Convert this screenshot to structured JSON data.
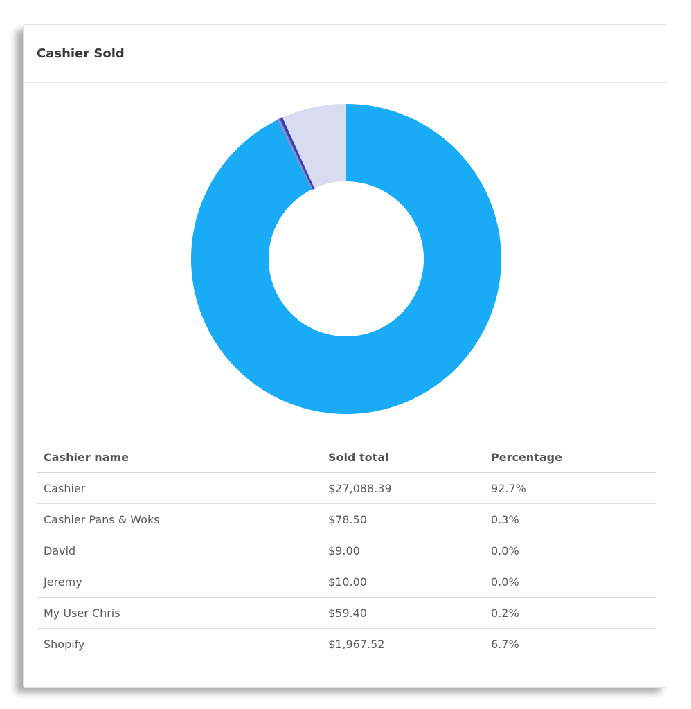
{
  "card": {
    "title": "Cashier Sold"
  },
  "colors": {
    "accent": "#1aabf6",
    "lavender": "#d9dbf0",
    "indigo": "#4448b8",
    "slate": "#8790c8"
  },
  "chart_data": {
    "type": "pie",
    "donut": true,
    "legend": "none",
    "categories": [
      "Cashier",
      "Cashier Pans & Woks",
      "David",
      "Jeremy",
      "My User Chris",
      "Shopify"
    ],
    "values": [
      27088.39,
      78.5,
      9.0,
      10.0,
      59.4,
      1967.52
    ],
    "colors": [
      "#1aabf6",
      "#8790c8",
      "#4448b8",
      "#5a5ec8",
      "#3a3eb0",
      "#d9dbf0"
    ]
  },
  "table": {
    "headers": {
      "name": "Cashier name",
      "total": "Sold total",
      "percent": "Percentage"
    },
    "rows": [
      {
        "name": "Cashier",
        "total": "$27,088.39",
        "percent": "92.7%"
      },
      {
        "name": "Cashier Pans & Woks",
        "total": "$78.50",
        "percent": "0.3%"
      },
      {
        "name": "David",
        "total": "$9.00",
        "percent": "0.0%"
      },
      {
        "name": "Jeremy",
        "total": "$10.00",
        "percent": "0.0%"
      },
      {
        "name": "My User Chris",
        "total": "$59.40",
        "percent": "0.2%"
      },
      {
        "name": "Shopify",
        "total": "$1,967.52",
        "percent": "6.7%"
      }
    ]
  }
}
